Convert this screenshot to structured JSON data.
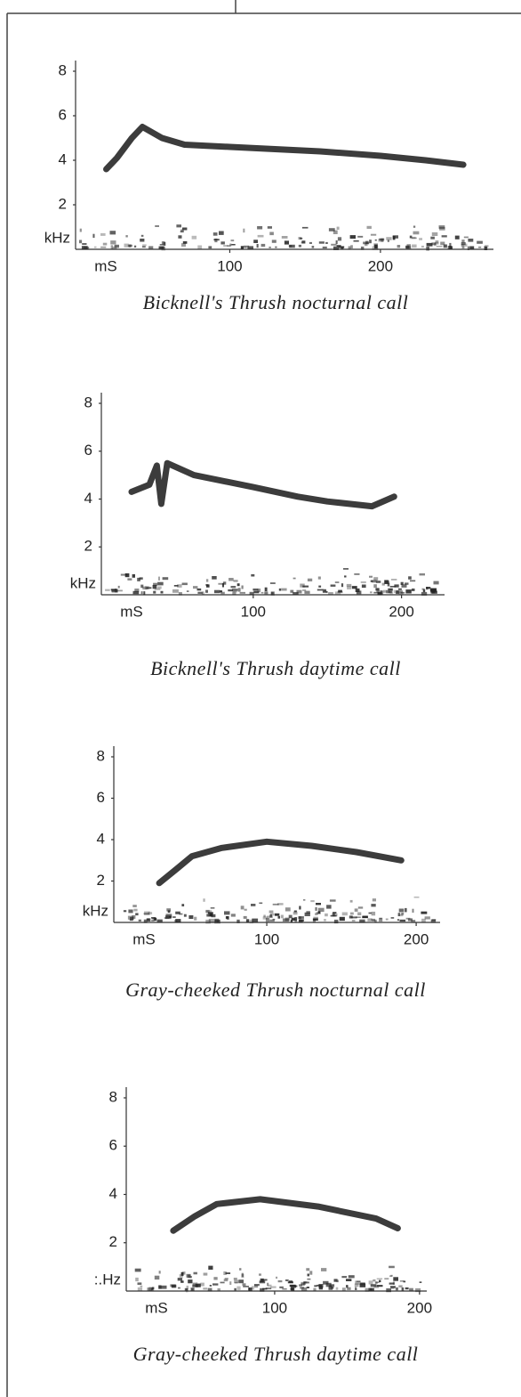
{
  "chart_data": [
    {
      "type": "line",
      "title": "Bicknell's Thrush nocturnal call",
      "x_label": "mS",
      "y_label": "kHz",
      "x": [
        18,
        25,
        35,
        42,
        55,
        70,
        100,
        130,
        160,
        200,
        230,
        255
      ],
      "series": [
        {
          "color": "#1a1a1a",
          "values": [
            3.6,
            4.1,
            5.0,
            5.5,
            5.0,
            4.7,
            4.6,
            4.5,
            4.4,
            4.2,
            4.0,
            3.8
          ]
        }
      ],
      "xlim": [
        0,
        275
      ],
      "ylim": [
        0,
        8
      ],
      "xticks": [
        100,
        200
      ],
      "yticks": [
        2,
        4,
        6,
        8
      ]
    },
    {
      "type": "line",
      "title": "Bicknell's Thrush daytime call",
      "x_label": "mS",
      "y_label": "kHz",
      "x": [
        18,
        30,
        35,
        38,
        42,
        60,
        100,
        130,
        150,
        180,
        195
      ],
      "series": [
        {
          "color": "#1a1a1a",
          "values": [
            4.3,
            4.6,
            5.4,
            3.8,
            5.5,
            5.0,
            4.5,
            4.1,
            3.9,
            3.7,
            4.1
          ]
        }
      ],
      "xlim": [
        0,
        229
      ],
      "ylim": [
        0,
        8
      ],
      "xticks": [
        100,
        200
      ],
      "yticks": [
        2,
        4,
        6,
        8
      ]
    },
    {
      "type": "line",
      "title": "Gray-cheeked Thrush nocturnal call",
      "x_label": "mS",
      "y_label": "kHz",
      "x": [
        28,
        40,
        50,
        70,
        100,
        130,
        160,
        190
      ],
      "series": [
        {
          "color": "#1a1a1a",
          "values": [
            1.9,
            2.6,
            3.2,
            3.6,
            3.9,
            3.7,
            3.4,
            3.0
          ]
        }
      ],
      "xlim": [
        0,
        216
      ],
      "ylim": [
        0,
        8
      ],
      "xticks": [
        100,
        200
      ],
      "yticks": [
        2,
        4,
        6,
        8
      ]
    },
    {
      "type": "line",
      "title": "Gray-cheeked Thrush daytime call",
      "x_label": "mS",
      "y_label": ":.Hz",
      "x": [
        30,
        45,
        60,
        90,
        130,
        170,
        185
      ],
      "series": [
        {
          "color": "#1a1a1a",
          "values": [
            2.5,
            3.1,
            3.6,
            3.8,
            3.5,
            3.0,
            2.6
          ]
        }
      ],
      "xlim": [
        0,
        205
      ],
      "ylim": [
        0,
        8
      ],
      "xticks": [
        100,
        200
      ],
      "yticks": [
        2,
        4,
        6,
        8
      ]
    }
  ]
}
